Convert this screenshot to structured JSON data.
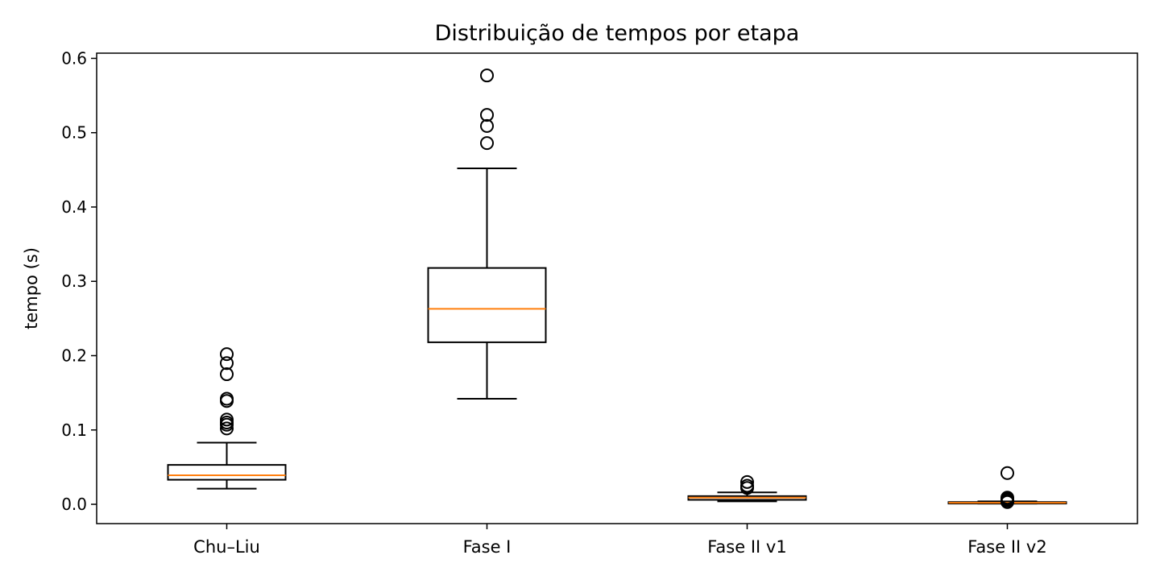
{
  "chart_data": {
    "type": "boxplot",
    "title": "Distribuição de tempos por etapa",
    "xlabel": "",
    "ylabel": "tempo (s)",
    "ylim": [
      -0.026,
      0.607
    ],
    "yticks": [
      0.0,
      0.1,
      0.2,
      0.3,
      0.4,
      0.5,
      0.6
    ],
    "ytick_labels": [
      "0.0",
      "0.1",
      "0.2",
      "0.3",
      "0.4",
      "0.5",
      "0.6"
    ],
    "grid": false,
    "categories": [
      "Chu–Liu",
      "Fase I",
      "Fase II v1",
      "Fase II v2"
    ],
    "boxes": [
      {
        "whisker_low": 0.021,
        "q1": 0.033,
        "median": 0.039,
        "q3": 0.053,
        "whisker_high": 0.083,
        "outliers": [
          0.102,
          0.107,
          0.11,
          0.114,
          0.139,
          0.142,
          0.175,
          0.19,
          0.202
        ]
      },
      {
        "whisker_low": 0.142,
        "q1": 0.218,
        "median": 0.263,
        "q3": 0.318,
        "whisker_high": 0.452,
        "outliers": [
          0.486,
          0.509,
          0.524,
          0.577
        ]
      },
      {
        "whisker_low": 0.004,
        "q1": 0.006,
        "median": 0.009,
        "q3": 0.011,
        "whisker_high": 0.016,
        "outliers": [
          0.022,
          0.025,
          0.03
        ]
      },
      {
        "whisker_low": 0.001,
        "q1": 0.001,
        "median": 0.002,
        "q3": 0.003,
        "whisker_high": 0.004,
        "outliers": [
          0.003,
          0.005,
          0.007,
          0.009,
          0.042
        ]
      }
    ],
    "colors": {
      "box": "#000000",
      "median": "#ff7f0e",
      "flier": "#000000"
    }
  }
}
